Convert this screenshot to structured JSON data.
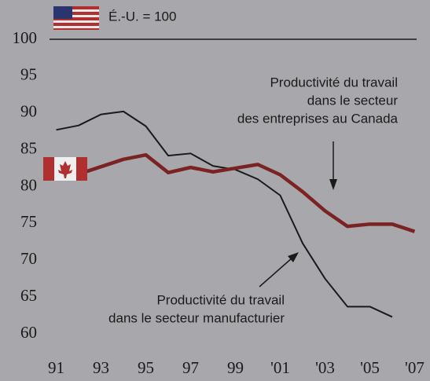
{
  "chart_data": {
    "type": "line",
    "reference": {
      "label": "É.-U. = 100",
      "value": 100
    },
    "x": [
      1991,
      1992,
      1993,
      1994,
      1995,
      1996,
      1997,
      1998,
      1999,
      2000,
      2001,
      2002,
      2003,
      2004,
      2005,
      2006,
      2007
    ],
    "series": [
      {
        "name": "Productivité du travail dans le secteur manufacturier",
        "color": "#1a1a1a",
        "values": [
          87.7,
          88.3,
          89.8,
          90.2,
          88.2,
          84.2,
          84.5,
          82.8,
          82.3,
          81,
          78.8,
          72.3,
          67.5,
          63.7,
          63.7,
          62.3,
          null
        ]
      },
      {
        "name": "Productivité du travail dans le secteur des entreprises au Canada",
        "color": "#7b2323",
        "values": [
          81.8,
          81.7,
          82.7,
          83.7,
          84.3,
          81.9,
          82.6,
          82,
          82.5,
          83,
          81.6,
          79.3,
          76.7,
          74.6,
          74.9,
          74.9,
          73.9
        ]
      }
    ],
    "annotations": [
      {
        "lines": [
          "Productivité du travail",
          "dans le secteur",
          "des entreprises au Canada"
        ]
      },
      {
        "lines": [
          "Productivité du travail",
          "dans le secteur manufacturier"
        ]
      }
    ],
    "xlim": [
      1990.7,
      2007.3
    ],
    "xticks": [
      {
        "value": 1991,
        "label": "91"
      },
      {
        "value": 1993,
        "label": "93"
      },
      {
        "value": 1995,
        "label": "95"
      },
      {
        "value": 1997,
        "label": "97"
      },
      {
        "value": 1999,
        "label": "99"
      },
      {
        "value": 2001,
        "label": "'01"
      },
      {
        "value": 2003,
        "label": "'03"
      },
      {
        "value": 2005,
        "label": "'05"
      },
      {
        "value": 2007,
        "label": "'07"
      }
    ],
    "ylim": [
      60,
      100
    ],
    "yticks": [
      60,
      65,
      70,
      75,
      80,
      85,
      90,
      95,
      100
    ]
  }
}
